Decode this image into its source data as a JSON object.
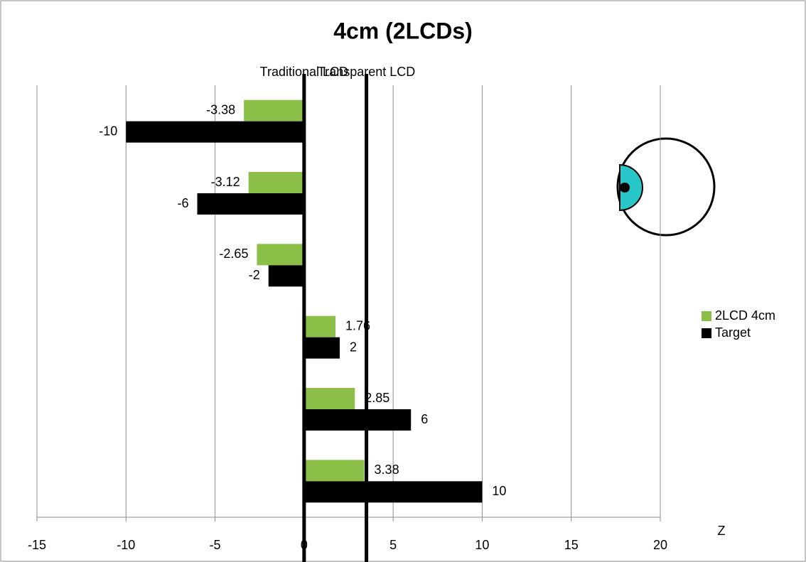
{
  "chart_data": {
    "type": "hbar",
    "title": "4cm (2LCDs)",
    "x_label": "Z",
    "categories": [
      null,
      null,
      null,
      null,
      null,
      null
    ],
    "series": [
      {
        "name": "2LCD 4cm",
        "color": "#8cbf48",
        "values": [
          -3.38,
          -3.12,
          -2.65,
          1.76,
          2.85,
          3.38
        ]
      },
      {
        "name": "Target",
        "color": "#000000",
        "values": [
          -10,
          -6,
          -2,
          2,
          6,
          10
        ]
      }
    ],
    "xlim": [
      -15,
      20
    ],
    "xticks": [
      -15,
      -10,
      -5,
      0,
      5,
      10,
      15,
      20
    ],
    "grid": true,
    "legend": "right",
    "reference_lines": [
      {
        "label": "Traditional LCD",
        "value": 0
      },
      {
        "label": "Transparent LCD",
        "value": 3.5
      }
    ]
  }
}
